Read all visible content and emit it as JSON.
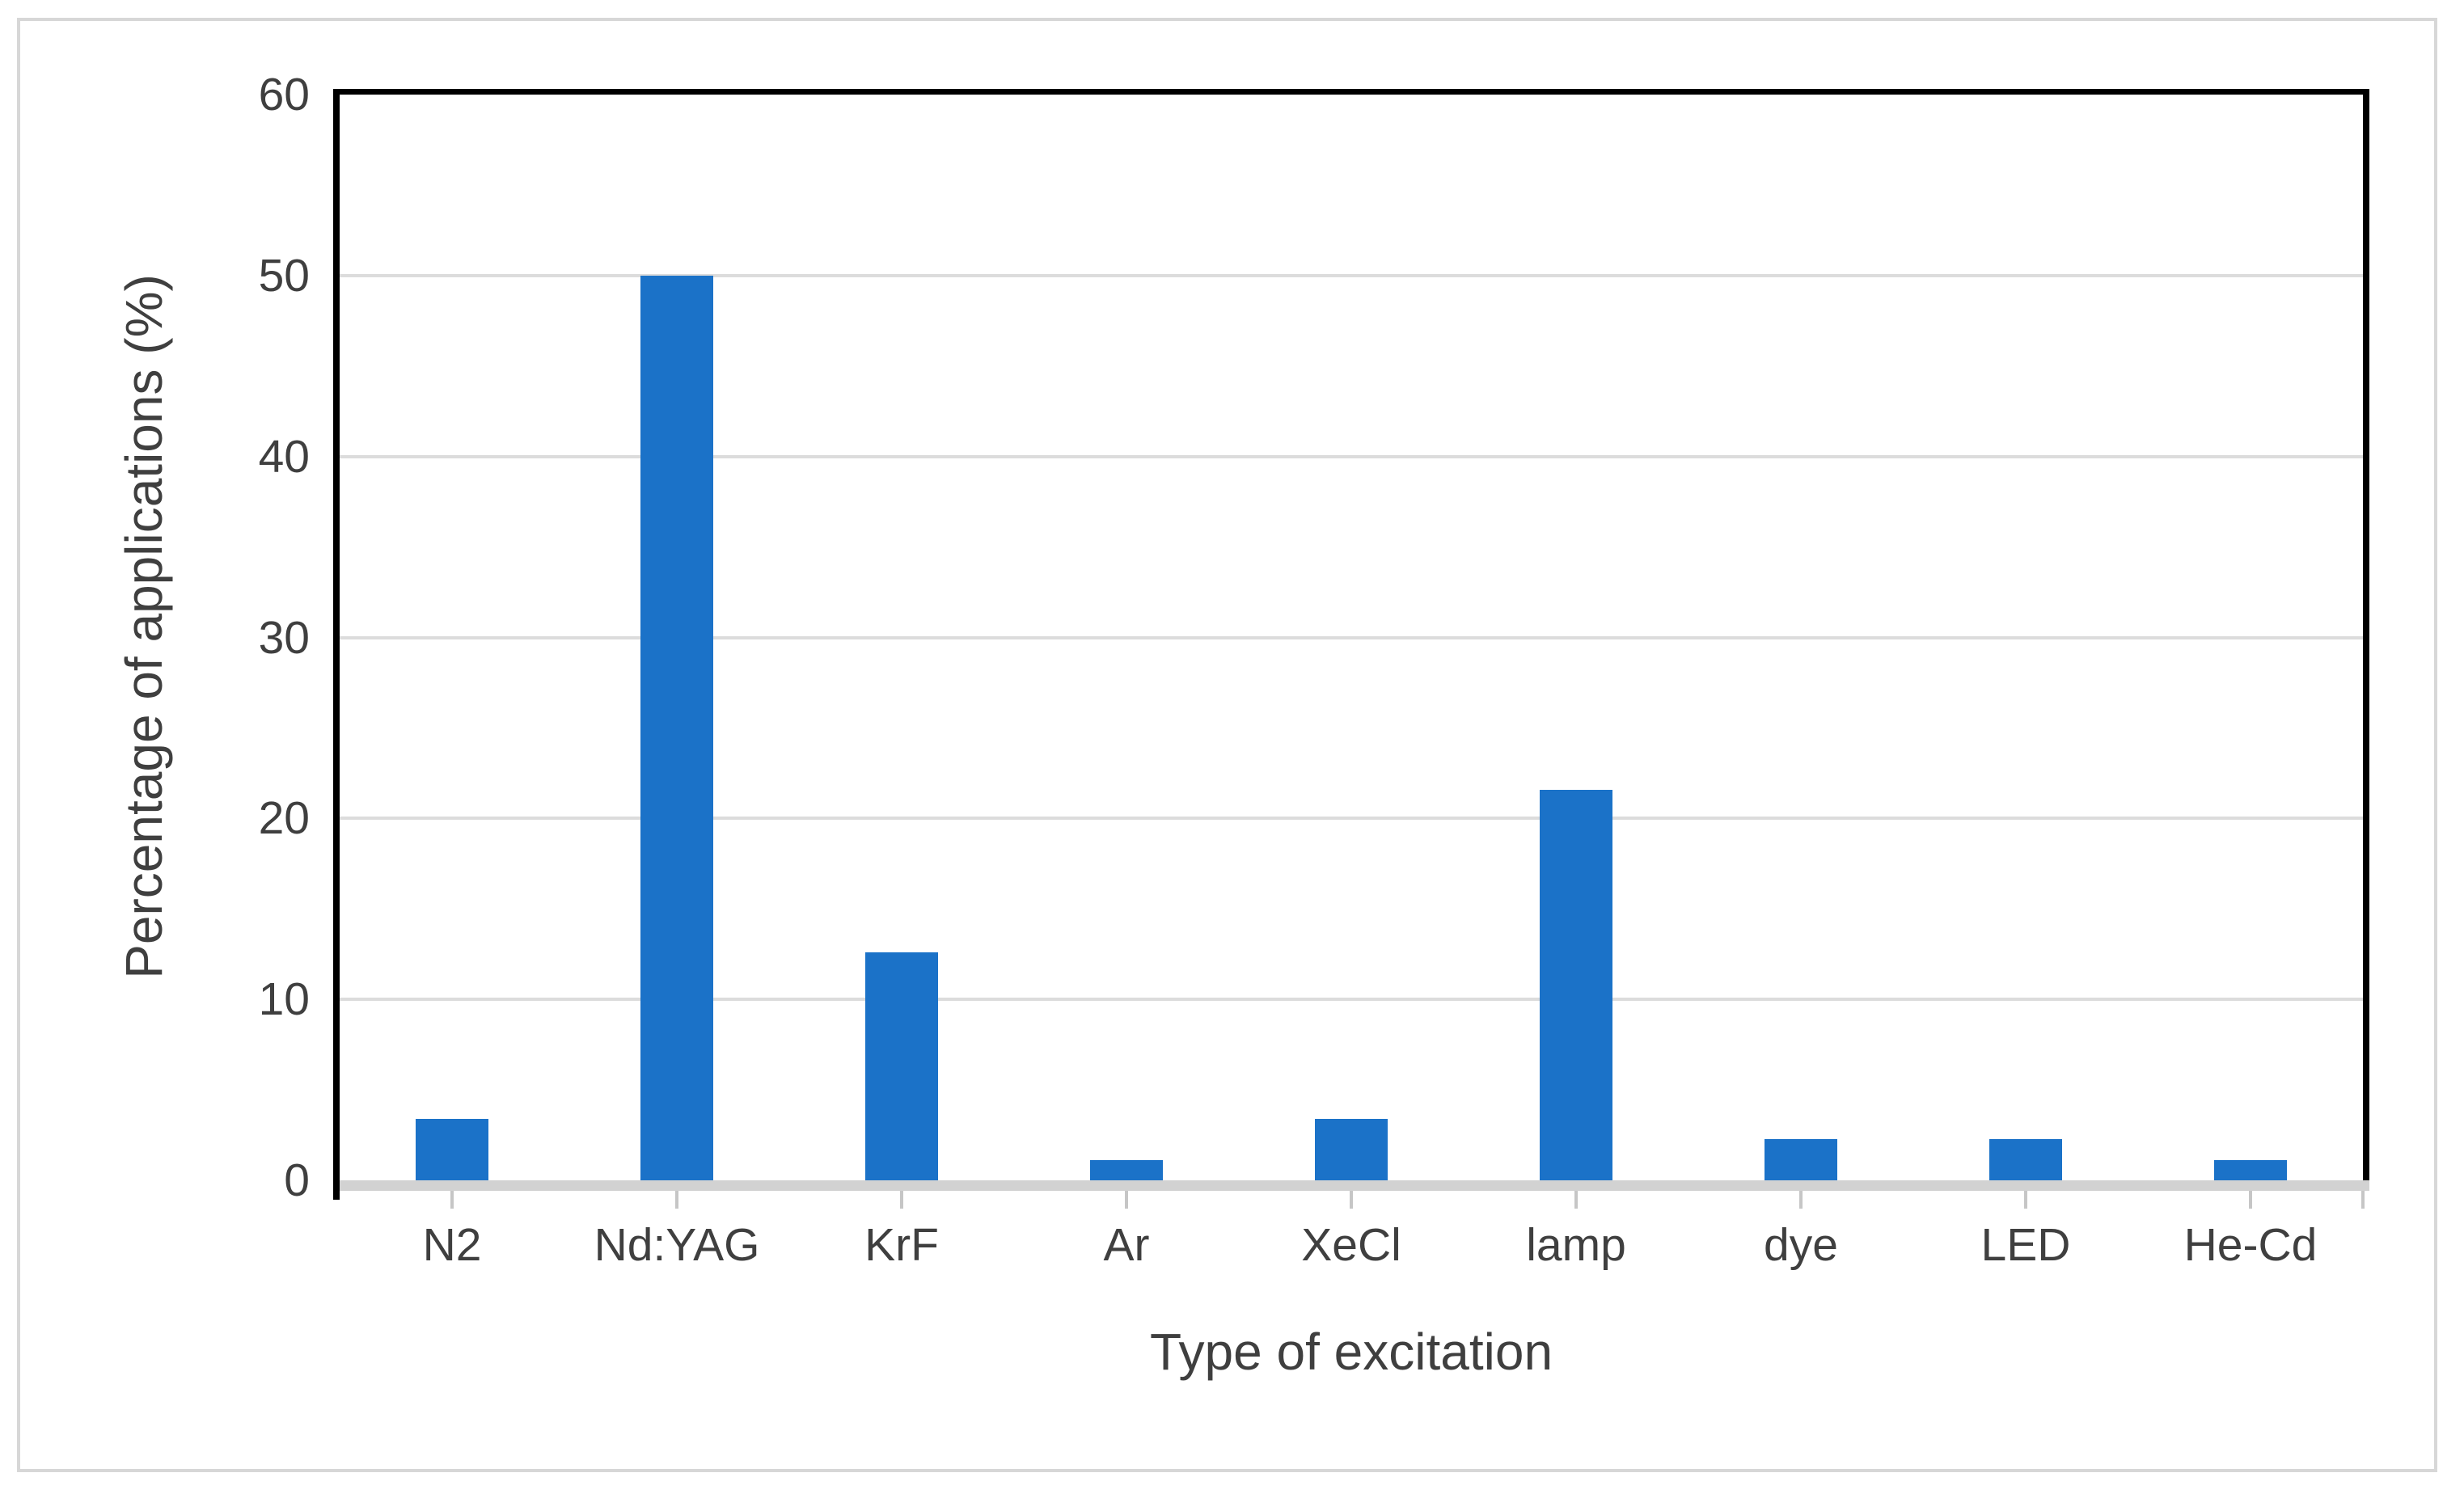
{
  "chart_data": {
    "type": "bar",
    "title": "",
    "categories": [
      "N2",
      "Nd:YAG",
      "KrF",
      "Ar",
      "XeCl",
      "lamp",
      "dye",
      "LED",
      "He-Cd"
    ],
    "values": [
      3.4,
      50,
      12.6,
      1.1,
      3.4,
      21.6,
      2.3,
      2.3,
      1.1
    ],
    "xlabel": "Type of excitation",
    "ylabel": "Percentage of applications (%)",
    "ylim": [
      0,
      60
    ],
    "ytick_step": 10,
    "ytick_labels": [
      "0",
      "10",
      "20",
      "30",
      "40",
      "50",
      "60"
    ],
    "grid": "horizontal-gridlines-every-10",
    "legend": "none",
    "colors": {
      "bar": "#1b72c8",
      "gridline": "#dcdcdc",
      "axis_line": "#000000",
      "category_axis_band": "#d2d2d2",
      "tick": "#c6c6c6",
      "text": "#3f3f3f",
      "figure_border": "#d7d7d7",
      "background": "#ffffff"
    }
  }
}
